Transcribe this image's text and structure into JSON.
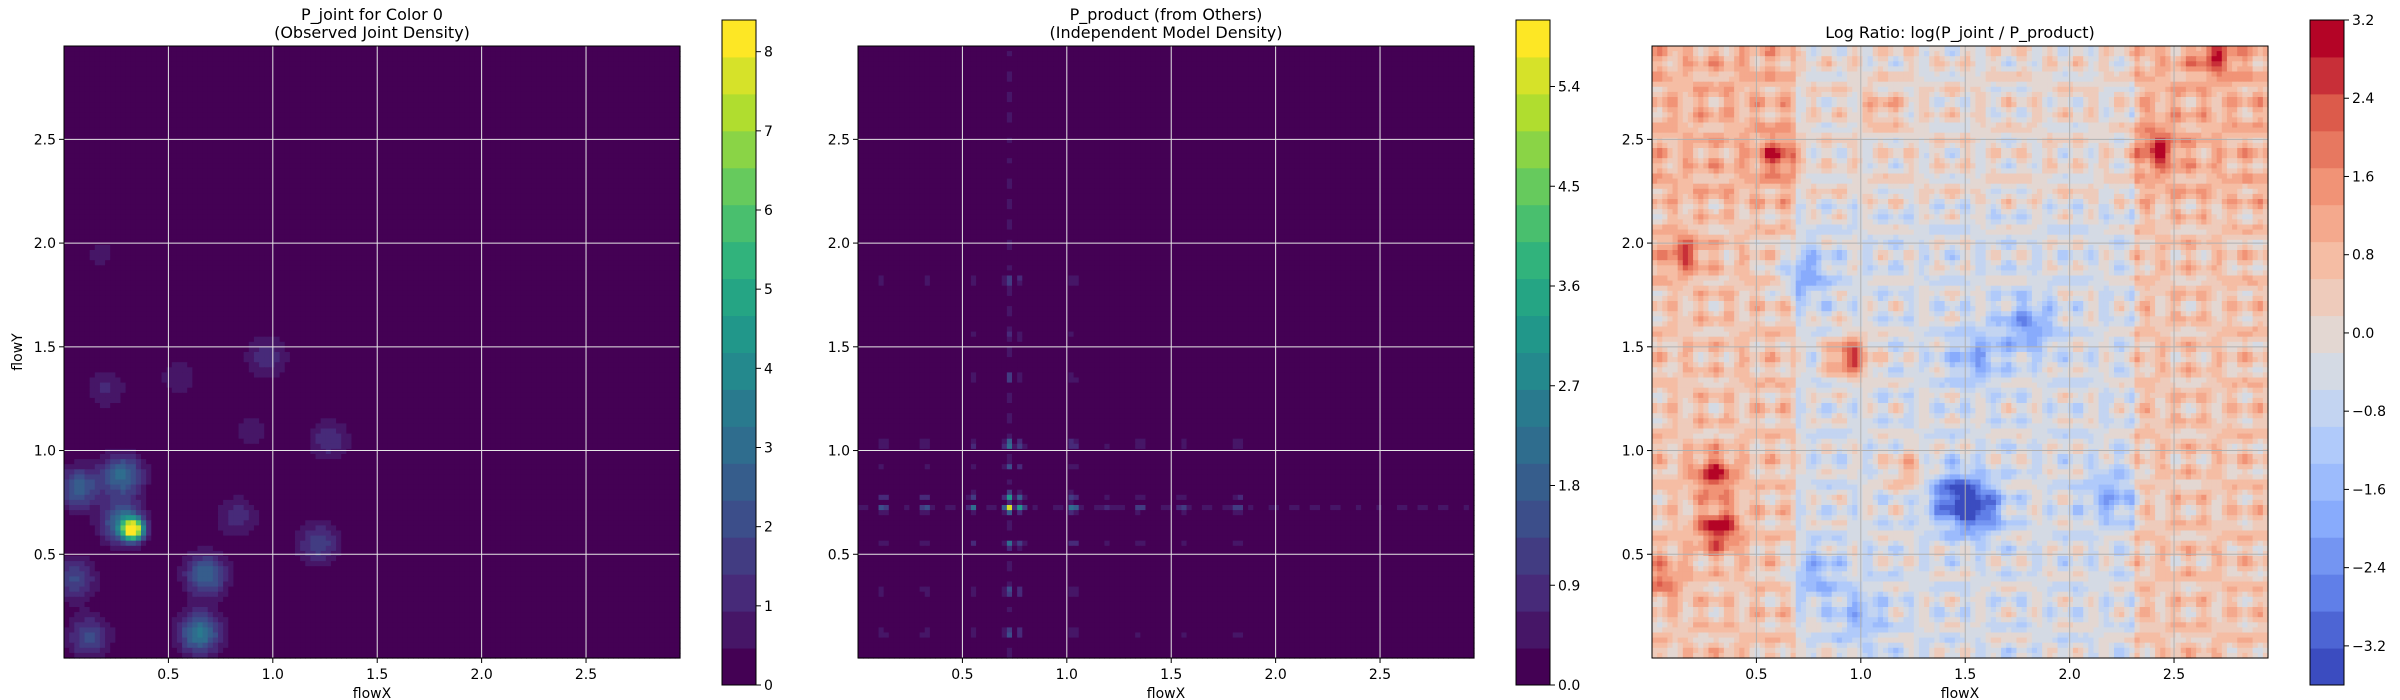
{
  "chart_data": [
    {
      "type": "heatmap",
      "title_lines": [
        "P_joint for Color 0",
        "(Observed Joint Density)"
      ],
      "xlabel": "flowX",
      "ylabel": "flowY",
      "xlim": [
        0.0,
        2.95
      ],
      "ylim": [
        0.0,
        2.95
      ],
      "xticks": [
        "0.5",
        "1.0",
        "1.5",
        "2.0",
        "2.5"
      ],
      "yticks": [
        "0.5",
        "1.0",
        "1.5",
        "2.0",
        "2.5"
      ],
      "grid": true,
      "colormap": "viridis",
      "colorbar": {
        "min": 0,
        "max": 8.4,
        "ticks": [
          "0",
          "1",
          "2",
          "3",
          "4",
          "5",
          "6",
          "7",
          "8"
        ]
      },
      "peaks": [
        {
          "x": 0.33,
          "y": 0.62,
          "v": 8.2
        },
        {
          "x": 0.28,
          "y": 0.65,
          "v": 3.2
        },
        {
          "x": 0.65,
          "y": 0.12,
          "v": 3.4
        },
        {
          "x": 0.07,
          "y": 0.82,
          "v": 2.6
        },
        {
          "x": 0.28,
          "y": 0.88,
          "v": 3.0
        },
        {
          "x": 0.68,
          "y": 0.4,
          "v": 2.8
        },
        {
          "x": 0.05,
          "y": 0.38,
          "v": 2.0
        },
        {
          "x": 0.12,
          "y": 0.1,
          "v": 2.0
        },
        {
          "x": 1.22,
          "y": 0.55,
          "v": 1.8
        },
        {
          "x": 1.27,
          "y": 1.05,
          "v": 1.3
        },
        {
          "x": 0.97,
          "y": 1.45,
          "v": 1.3
        },
        {
          "x": 0.83,
          "y": 0.68,
          "v": 1.2
        },
        {
          "x": 0.2,
          "y": 1.3,
          "v": 1.0
        },
        {
          "x": 0.55,
          "y": 1.35,
          "v": 0.8
        },
        {
          "x": 0.18,
          "y": 1.95,
          "v": 0.6
        },
        {
          "x": 0.9,
          "y": 1.1,
          "v": 0.7
        }
      ]
    },
    {
      "type": "heatmap",
      "title_lines": [
        "P_product (from Others)",
        "(Independent Model Density)"
      ],
      "xlabel": "flowX",
      "ylabel": "",
      "xlim": [
        0.0,
        2.95
      ],
      "ylim": [
        0.0,
        2.95
      ],
      "xticks": [
        "0.5",
        "1.0",
        "1.5",
        "2.0",
        "2.5"
      ],
      "yticks": [
        "0.5",
        "1.0",
        "1.5",
        "2.0",
        "2.5"
      ],
      "grid": true,
      "colormap": "viridis",
      "colorbar": {
        "min": 0,
        "max": 6.0,
        "ticks": [
          "0.0",
          "0.9",
          "1.8",
          "2.7",
          "3.6",
          "4.5",
          "5.4"
        ]
      },
      "marginal_x": [
        {
          "x": 0.72,
          "v": 1.0
        },
        {
          "x": 0.78,
          "v": 0.55
        },
        {
          "x": 1.03,
          "v": 0.5
        },
        {
          "x": 0.32,
          "v": 0.32
        },
        {
          "x": 0.12,
          "v": 0.3
        },
        {
          "x": 0.55,
          "v": 0.3
        },
        {
          "x": 1.35,
          "v": 0.22
        },
        {
          "x": 1.55,
          "v": 0.2
        },
        {
          "x": 1.82,
          "v": 0.3
        },
        {
          "x": 1.2,
          "v": 0.15
        }
      ],
      "marginal_y": [
        {
          "y": 0.72,
          "v": 1.0
        },
        {
          "y": 0.78,
          "v": 0.55
        },
        {
          "y": 1.03,
          "v": 0.5
        },
        {
          "y": 0.12,
          "v": 0.3
        },
        {
          "y": 0.32,
          "v": 0.3
        },
        {
          "y": 0.55,
          "v": 0.32
        },
        {
          "y": 0.92,
          "v": 0.2
        },
        {
          "y": 1.35,
          "v": 0.2
        },
        {
          "y": 1.82,
          "v": 0.3
        },
        {
          "y": 1.55,
          "v": 0.15
        }
      ]
    },
    {
      "type": "heatmap",
      "title_lines": [
        "Log Ratio: log(P_joint / P_product)"
      ],
      "xlabel": "flowX",
      "ylabel": "",
      "xlim": [
        0.0,
        2.95
      ],
      "ylim": [
        0.0,
        2.95
      ],
      "xticks": [
        "0.5",
        "1.0",
        "1.5",
        "2.0",
        "2.5"
      ],
      "yticks": [
        "0.5",
        "1.0",
        "1.5",
        "2.0",
        "2.5"
      ],
      "grid": true,
      "colormap": "coolwarm",
      "colorbar": {
        "min": -3.6,
        "max": 3.2,
        "ticks": [
          "−3.2",
          "−2.4",
          "−1.6",
          "−0.8",
          "0.0",
          "0.8",
          "1.6",
          "2.4",
          "3.2"
        ],
        "tick_values": [
          -3.2,
          -2.4,
          -1.6,
          -0.8,
          0.0,
          0.8,
          1.6,
          2.4,
          3.2
        ]
      },
      "hot_spots": [
        {
          "x": 0.95,
          "y": 1.45,
          "v": 2.8
        },
        {
          "x": 0.32,
          "y": 0.62,
          "v": 2.6
        },
        {
          "x": 0.3,
          "y": 0.88,
          "v": 2.2
        },
        {
          "x": 0.15,
          "y": 1.95,
          "v": 1.8
        },
        {
          "x": 0.6,
          "y": 2.42,
          "v": 1.6
        },
        {
          "x": 2.42,
          "y": 2.45,
          "v": 1.8
        },
        {
          "x": 2.7,
          "y": 2.9,
          "v": 1.6
        },
        {
          "x": 1.22,
          "y": 0.9,
          "v": 1.3
        },
        {
          "x": 0.05,
          "y": 0.38,
          "v": 1.4
        },
        {
          "x": 1.1,
          "y": 2.65,
          "v": 1.0
        }
      ],
      "cold_spots": [
        {
          "x": 1.55,
          "y": 0.72,
          "v": -2.6
        },
        {
          "x": 1.45,
          "y": 0.78,
          "v": -2.2
        },
        {
          "x": 1.8,
          "y": 1.6,
          "v": -1.8
        },
        {
          "x": 0.72,
          "y": 1.85,
          "v": -1.6
        },
        {
          "x": 1.55,
          "y": 1.45,
          "v": -1.5
        },
        {
          "x": 2.2,
          "y": 0.78,
          "v": -1.4
        },
        {
          "x": 0.78,
          "y": 0.4,
          "v": -1.3
        },
        {
          "x": 1.0,
          "y": 0.2,
          "v": -1.2
        }
      ]
    }
  ]
}
